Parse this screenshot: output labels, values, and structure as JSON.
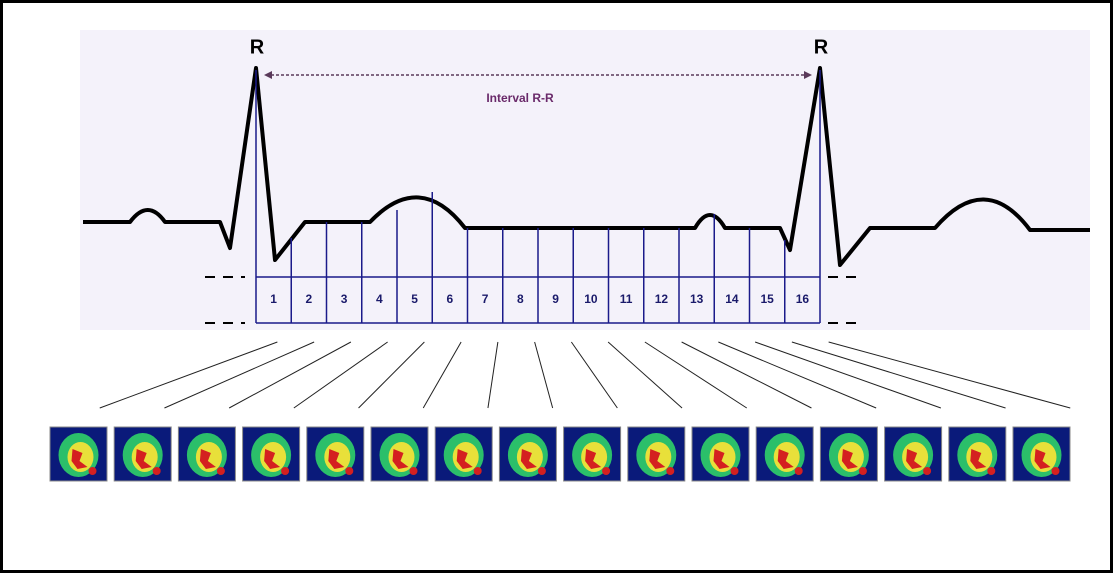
{
  "labels": {
    "r_left": "R",
    "r_right": "R",
    "interval": "Interval R-R"
  },
  "frames": [
    1,
    2,
    3,
    4,
    5,
    6,
    7,
    8,
    9,
    10,
    11,
    12,
    13,
    14,
    15,
    16
  ]
}
